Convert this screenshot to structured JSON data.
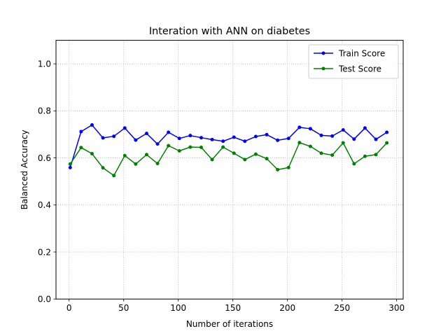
{
  "chart_data": {
    "type": "line",
    "title": "Interation with ANN on diabetes",
    "xlabel": "Number of iterations",
    "ylabel": "Balanced Accuracy",
    "xlim": [
      -12,
      306
    ],
    "ylim": [
      0.0,
      1.1
    ],
    "xticks": [
      0,
      50,
      100,
      150,
      200,
      250,
      300
    ],
    "yticks": [
      0.0,
      0.2,
      0.4,
      0.6,
      0.8,
      1.0
    ],
    "xtick_labels": [
      "0",
      "50",
      "100",
      "150",
      "200",
      "250",
      "300"
    ],
    "ytick_labels": [
      "0.0",
      "0.2",
      "0.4",
      "0.6",
      "0.8",
      "1.0"
    ],
    "grid": true,
    "legend_position": "upper right",
    "x": [
      1,
      11,
      21,
      31,
      41,
      51,
      61,
      71,
      81,
      91,
      101,
      111,
      121,
      131,
      141,
      151,
      161,
      171,
      181,
      191,
      201,
      211,
      221,
      231,
      241,
      251,
      261,
      271,
      281,
      291
    ],
    "series": [
      {
        "name": "Train Score",
        "color": "#0000ff",
        "values": [
          0.559,
          0.712,
          0.74,
          0.685,
          0.692,
          0.727,
          0.676,
          0.704,
          0.659,
          0.709,
          0.683,
          0.695,
          0.686,
          0.678,
          0.671,
          0.688,
          0.671,
          0.691,
          0.699,
          0.675,
          0.683,
          0.73,
          0.724,
          0.696,
          0.693,
          0.719,
          0.68,
          0.727,
          0.679,
          0.709
        ]
      },
      {
        "name": "Test Score",
        "color": "#008000",
        "values": [
          0.574,
          0.644,
          0.618,
          0.558,
          0.525,
          0.61,
          0.574,
          0.614,
          0.576,
          0.652,
          0.63,
          0.646,
          0.645,
          0.593,
          0.646,
          0.62,
          0.593,
          0.616,
          0.597,
          0.55,
          0.559,
          0.665,
          0.649,
          0.62,
          0.612,
          0.664,
          0.575,
          0.607,
          0.614,
          0.664
        ]
      }
    ]
  }
}
